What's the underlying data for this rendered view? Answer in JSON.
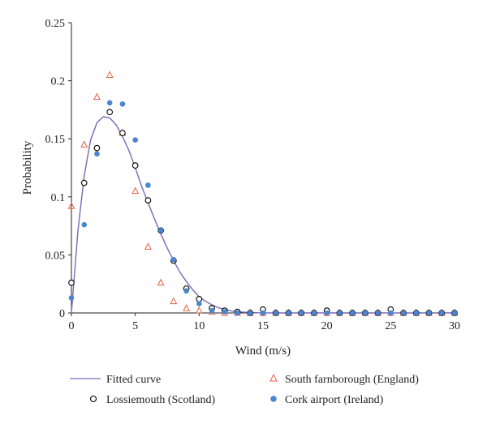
{
  "chart_data": {
    "type": "scatter",
    "xlabel": "Wind (m/s)",
    "ylabel": "Probability",
    "xlim": [
      0,
      30
    ],
    "ylim": [
      0,
      0.25
    ],
    "x_ticks": [
      "0",
      "5",
      "10",
      "15",
      "20",
      "25",
      "30"
    ],
    "y_ticks": [
      "0",
      "0.05",
      "0.1",
      "0.15",
      "0.2",
      "0.25"
    ],
    "legend_position": "bottom",
    "colors": {
      "curve": "#7b68b5",
      "england": "#e8604a",
      "scotland": "#000000",
      "ireland": "#4a86d0"
    },
    "series": [
      {
        "name": "Fitted curve",
        "kind": "line",
        "x": [
          0,
          0.5,
          1,
          1.5,
          2,
          2.5,
          3,
          3.5,
          4,
          4.5,
          5,
          5.5,
          6,
          6.5,
          7,
          7.5,
          8,
          8.5,
          9,
          9.5,
          10,
          10.5,
          11,
          11.5,
          12,
          12.5,
          13,
          13.5,
          14,
          15,
          16,
          18,
          20,
          25,
          30
        ],
        "y": [
          0.0,
          0.07,
          0.118,
          0.149,
          0.164,
          0.169,
          0.168,
          0.162,
          0.152,
          0.14,
          0.125,
          0.109,
          0.095,
          0.081,
          0.068,
          0.056,
          0.045,
          0.035,
          0.027,
          0.02,
          0.014,
          0.01,
          0.007,
          0.0045,
          0.003,
          0.0018,
          0.001,
          0.0006,
          0.0003,
          0.0001,
          0.0,
          0.0,
          0.0,
          0.0,
          0.0
        ]
      },
      {
        "name": "South farnborough (England)",
        "kind": "triangle",
        "x": [
          0,
          1,
          2,
          3,
          4,
          5,
          6,
          7,
          8,
          9,
          10,
          11,
          12,
          13,
          14,
          15,
          16,
          17,
          18,
          19,
          20,
          21,
          22,
          23,
          24,
          25,
          26,
          27,
          28,
          29,
          30
        ],
        "y": [
          0.092,
          0.145,
          0.186,
          0.205,
          0.155,
          0.105,
          0.057,
          0.026,
          0.01,
          0.004,
          0.002,
          0.001,
          0.0,
          0.0,
          0.0,
          0.0,
          0.0,
          0.0,
          0.0,
          0.0,
          0.0,
          0.0,
          0.0,
          0.0,
          0.0,
          0.0,
          0.0,
          0.0,
          0.0,
          0.0,
          0.0
        ]
      },
      {
        "name": "Lossiemouth (Scotland)",
        "kind": "open-circle",
        "x": [
          0,
          1,
          2,
          3,
          4,
          5,
          6,
          7,
          8,
          9,
          10,
          11,
          12,
          13,
          14,
          15,
          16,
          17,
          18,
          19,
          20,
          21,
          22,
          23,
          24,
          25,
          26,
          27,
          28,
          29,
          30
        ],
        "y": [
          0.026,
          0.112,
          0.142,
          0.173,
          0.155,
          0.127,
          0.097,
          0.071,
          0.045,
          0.021,
          0.012,
          0.004,
          0.002,
          0.001,
          0.0,
          0.003,
          0.0,
          0.0,
          0.0,
          0.0,
          0.002,
          0.0,
          0.0,
          0.0,
          0.0,
          0.003,
          0.0,
          0.0,
          0.0,
          0.0,
          0.0
        ]
      },
      {
        "name": "Cork airport (Ireland)",
        "kind": "filled-circle",
        "x": [
          0,
          1,
          2,
          3,
          4,
          5,
          6,
          7,
          8,
          9,
          10,
          11,
          12,
          13,
          14,
          15,
          16,
          17,
          18,
          19,
          20,
          21,
          22,
          23,
          24,
          25,
          26,
          27,
          28,
          29,
          30
        ],
        "y": [
          0.013,
          0.076,
          0.137,
          0.181,
          0.18,
          0.149,
          0.11,
          0.071,
          0.046,
          0.019,
          0.008,
          0.002,
          0.001,
          0.0,
          0.0,
          0.0,
          0.0,
          0.0,
          0.0,
          0.0,
          0.0,
          0.0,
          0.0,
          0.0,
          0.0,
          0.0,
          0.0,
          0.0,
          0.0,
          0.0,
          0.0
        ]
      }
    ]
  }
}
